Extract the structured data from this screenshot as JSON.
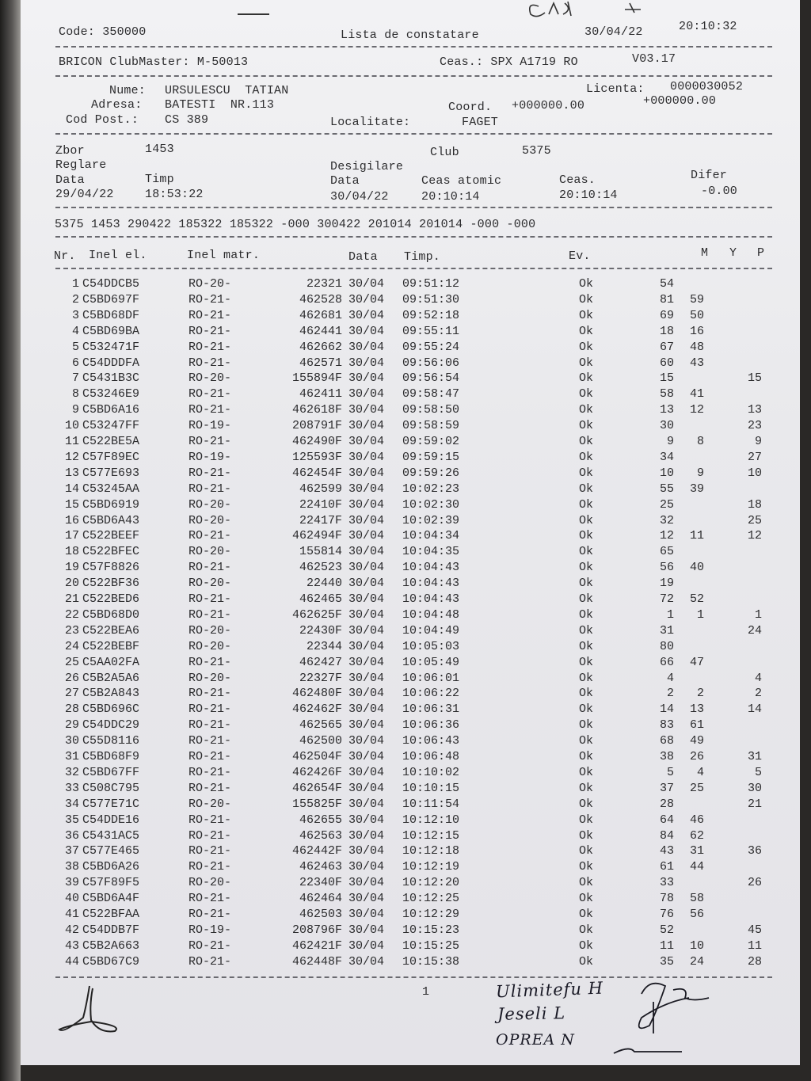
{
  "header": {
    "code": "Code: 350000",
    "title": "Lista de constatare",
    "print_date": "30/04/22",
    "print_time": "20:10:32",
    "device": "BRICON ClubMaster: M-50013",
    "clock": "Ceas.: SPX A1719 RO",
    "version": "V03.17"
  },
  "owner": {
    "name_label": "Nume:",
    "name": "URSULESCU  TATIAN",
    "license_label": "Licenta:",
    "license": "0000030052",
    "address_label": "Adresa:",
    "address": "BATESTI  NR.113",
    "coord_label": "Coord.",
    "coord_1": "+000000.00",
    "coord_2": "+000000.00",
    "postal_label": "Cod Post.:",
    "postal": "CS 389",
    "locality_label": "Localitate:",
    "locality": "FAGET"
  },
  "flight": {
    "zbor_label": "Zbor",
    "zbor": "1453",
    "club_label": "Club",
    "club": "5375",
    "reglare_label": "Reglare",
    "desigilare_label": "Desigilare",
    "data_label": "Data",
    "timp_label": "Timp",
    "data2_label": "Data",
    "ceas_atomic_label": "Ceas atomic",
    "ceas_label": "Ceas.",
    "difer_label": "Difer",
    "reglare_date": "29/04/22",
    "reglare_time": "18:53:22",
    "desig_date": "30/04/22",
    "atomic_time": "20:10:14",
    "ceas_time": "20:10:14",
    "difer": "-0.00",
    "code_line": "5375 1453 290422 185322 185322 -000 300422 201014 201014 -000 -000"
  },
  "table": {
    "columns": [
      "Nr.",
      "Inel el.",
      "Inel matr.",
      "Data",
      "Timp.",
      "Ev.",
      "M",
      "Y",
      "P"
    ],
    "rows": [
      [
        "1",
        "C54DDCB5",
        "RO-20-",
        "22321",
        "30/04",
        "09:51:12",
        "Ok",
        "54",
        "",
        ""
      ],
      [
        "2",
        "C5BD697F",
        "RO-21-",
        "462528",
        "30/04",
        "09:51:30",
        "Ok",
        "81",
        "59",
        ""
      ],
      [
        "3",
        "C5BD68DF",
        "RO-21-",
        "462681",
        "30/04",
        "09:52:18",
        "Ok",
        "69",
        "50",
        ""
      ],
      [
        "4",
        "C5BD69BA",
        "RO-21-",
        "462441",
        "30/04",
        "09:55:11",
        "Ok",
        "18",
        "16",
        ""
      ],
      [
        "5",
        "C532471F",
        "RO-21-",
        "462662",
        "30/04",
        "09:55:24",
        "Ok",
        "67",
        "48",
        ""
      ],
      [
        "6",
        "C54DDDFA",
        "RO-21-",
        "462571",
        "30/04",
        "09:56:06",
        "Ok",
        "60",
        "43",
        ""
      ],
      [
        "7",
        "C5431B3C",
        "RO-20-",
        "155894F",
        "30/04",
        "09:56:54",
        "Ok",
        "15",
        "",
        "15"
      ],
      [
        "8",
        "C53246E9",
        "RO-21-",
        "462411",
        "30/04",
        "09:58:47",
        "Ok",
        "58",
        "41",
        ""
      ],
      [
        "9",
        "C5BD6A16",
        "RO-21-",
        "462618F",
        "30/04",
        "09:58:50",
        "Ok",
        "13",
        "12",
        "13"
      ],
      [
        "10",
        "C53247FF",
        "RO-19-",
        "208791F",
        "30/04",
        "09:58:59",
        "Ok",
        "30",
        "",
        "23"
      ],
      [
        "11",
        "C522BE5A",
        "RO-21-",
        "462490F",
        "30/04",
        "09:59:02",
        "Ok",
        "9",
        "8",
        "9"
      ],
      [
        "12",
        "C57F89EC",
        "RO-19-",
        "125593F",
        "30/04",
        "09:59:15",
        "Ok",
        "34",
        "",
        "27"
      ],
      [
        "13",
        "C577E693",
        "RO-21-",
        "462454F",
        "30/04",
        "09:59:26",
        "Ok",
        "10",
        "9",
        "10"
      ],
      [
        "14",
        "C53245AA",
        "RO-21-",
        "462599",
        "30/04",
        "10:02:23",
        "Ok",
        "55",
        "39",
        ""
      ],
      [
        "15",
        "C5BD6919",
        "RO-20-",
        "22410F",
        "30/04",
        "10:02:30",
        "Ok",
        "25",
        "",
        "18"
      ],
      [
        "16",
        "C5BD6A43",
        "RO-20-",
        "22417F",
        "30/04",
        "10:02:39",
        "Ok",
        "32",
        "",
        "25"
      ],
      [
        "17",
        "C522BEEF",
        "RO-21-",
        "462494F",
        "30/04",
        "10:04:34",
        "Ok",
        "12",
        "11",
        "12"
      ],
      [
        "18",
        "C522BFEC",
        "RO-20-",
        "155814",
        "30/04",
        "10:04:35",
        "Ok",
        "65",
        "",
        ""
      ],
      [
        "19",
        "C57F8826",
        "RO-21-",
        "462523",
        "30/04",
        "10:04:43",
        "Ok",
        "56",
        "40",
        ""
      ],
      [
        "20",
        "C522BF36",
        "RO-20-",
        "22440",
        "30/04",
        "10:04:43",
        "Ok",
        "19",
        "",
        ""
      ],
      [
        "21",
        "C522BED6",
        "RO-21-",
        "462465",
        "30/04",
        "10:04:43",
        "Ok",
        "72",
        "52",
        ""
      ],
      [
        "22",
        "C5BD68D0",
        "RO-21-",
        "462625F",
        "30/04",
        "10:04:48",
        "Ok",
        "1",
        "1",
        "1"
      ],
      [
        "23",
        "C522BEA6",
        "RO-20-",
        "22430F",
        "30/04",
        "10:04:49",
        "Ok",
        "31",
        "",
        "24"
      ],
      [
        "24",
        "C522BEBF",
        "RO-20-",
        "22344",
        "30/04",
        "10:05:03",
        "Ok",
        "80",
        "",
        ""
      ],
      [
        "25",
        "C5AA02FA",
        "RO-21-",
        "462427",
        "30/04",
        "10:05:49",
        "Ok",
        "66",
        "47",
        ""
      ],
      [
        "26",
        "C5B2A5A6",
        "RO-20-",
        "22327F",
        "30/04",
        "10:06:01",
        "Ok",
        "4",
        "",
        "4"
      ],
      [
        "27",
        "C5B2A843",
        "RO-21-",
        "462480F",
        "30/04",
        "10:06:22",
        "Ok",
        "2",
        "2",
        "2"
      ],
      [
        "28",
        "C5BD696C",
        "RO-21-",
        "462462F",
        "30/04",
        "10:06:31",
        "Ok",
        "14",
        "13",
        "14"
      ],
      [
        "29",
        "C54DDC29",
        "RO-21-",
        "462565",
        "30/04",
        "10:06:36",
        "Ok",
        "83",
        "61",
        ""
      ],
      [
        "30",
        "C55D8116",
        "RO-21-",
        "462500",
        "30/04",
        "10:06:43",
        "Ok",
        "68",
        "49",
        ""
      ],
      [
        "31",
        "C5BD68F9",
        "RO-21-",
        "462504F",
        "30/04",
        "10:06:48",
        "Ok",
        "38",
        "26",
        "31"
      ],
      [
        "32",
        "C5BD67FF",
        "RO-21-",
        "462426F",
        "30/04",
        "10:10:02",
        "Ok",
        "5",
        "4",
        "5"
      ],
      [
        "33",
        "C508C795",
        "RO-21-",
        "462654F",
        "30/04",
        "10:10:15",
        "Ok",
        "37",
        "25",
        "30"
      ],
      [
        "34",
        "C577E71C",
        "RO-20-",
        "155825F",
        "30/04",
        "10:11:54",
        "Ok",
        "28",
        "",
        "21"
      ],
      [
        "35",
        "C54DDE16",
        "RO-21-",
        "462655",
        "30/04",
        "10:12:10",
        "Ok",
        "64",
        "46",
        ""
      ],
      [
        "36",
        "C5431AC5",
        "RO-21-",
        "462563",
        "30/04",
        "10:12:15",
        "Ok",
        "84",
        "62",
        ""
      ],
      [
        "37",
        "C577E465",
        "RO-21-",
        "462442F",
        "30/04",
        "10:12:18",
        "Ok",
        "43",
        "31",
        "36"
      ],
      [
        "38",
        "C5BD6A26",
        "RO-21-",
        "462463",
        "30/04",
        "10:12:19",
        "Ok",
        "61",
        "44",
        ""
      ],
      [
        "39",
        "C57F89F5",
        "RO-20-",
        "22340F",
        "30/04",
        "10:12:20",
        "Ok",
        "33",
        "",
        "26"
      ],
      [
        "40",
        "C5BD6A4F",
        "RO-21-",
        "462464",
        "30/04",
        "10:12:25",
        "Ok",
        "78",
        "58",
        ""
      ],
      [
        "41",
        "C522BFAA",
        "RO-21-",
        "462503",
        "30/04",
        "10:12:29",
        "Ok",
        "76",
        "56",
        ""
      ],
      [
        "42",
        "C54DDB7F",
        "RO-19-",
        "208796F",
        "30/04",
        "10:15:23",
        "Ok",
        "52",
        "",
        "45"
      ],
      [
        "43",
        "C5B2A663",
        "RO-21-",
        "462421F",
        "30/04",
        "10:15:25",
        "Ok",
        "11",
        "10",
        "11"
      ],
      [
        "44",
        "C5BD67C9",
        "RO-21-",
        "462448F",
        "30/04",
        "10:15:38",
        "Ok",
        "35",
        "24",
        "28"
      ]
    ]
  },
  "footer": {
    "page_number": "1",
    "handwritten_top": "CEAS",
    "handwritten_names": [
      "Ulimitefu H",
      "Jeseli L",
      "OPREA N"
    ]
  }
}
